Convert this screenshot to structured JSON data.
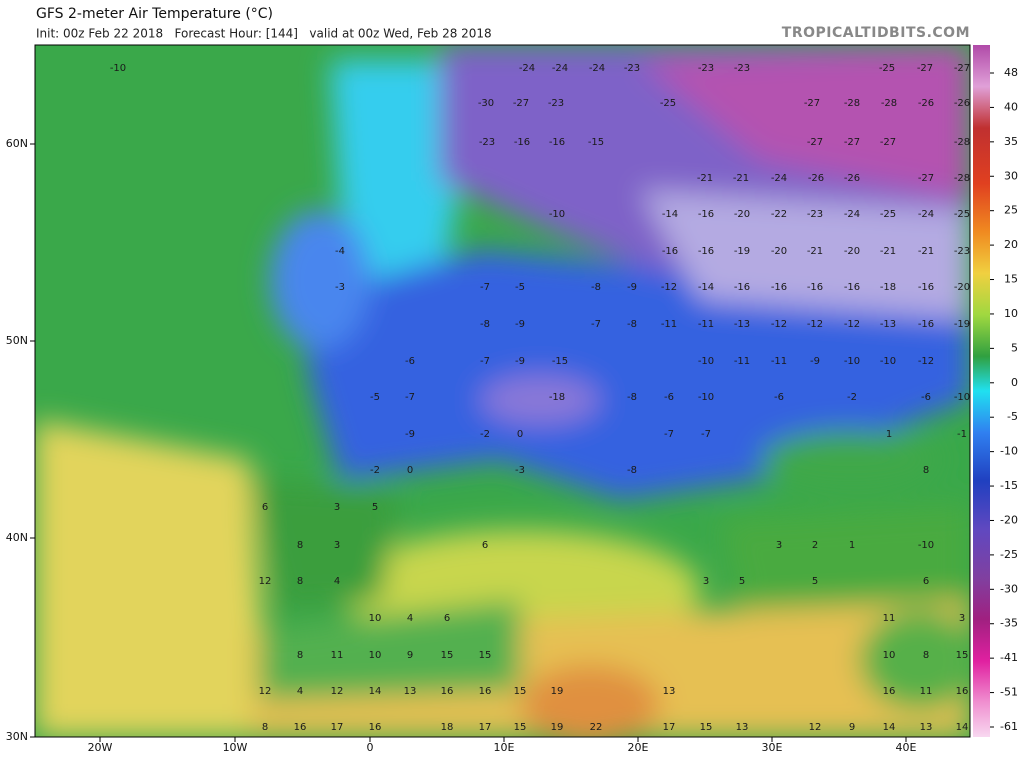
{
  "header": {
    "title": "GFS 2-meter Air Temperature (°C)",
    "subtitle": "Init: 00z Feb 22 2018   Forecast Hour: [144]   valid at 00z Wed, Feb 28 2018",
    "credit": "TROPICALTIDBITS.COM"
  },
  "map": {
    "lon_labels": [
      "20W",
      "10W",
      "0",
      "10E",
      "20E",
      "30E",
      "40E"
    ],
    "lat_labels": [
      "60N",
      "50N",
      "40N",
      "30N"
    ],
    "values": [
      -10,
      -24,
      -24,
      -24,
      -23,
      -23,
      -23,
      -25,
      -27,
      -27,
      -30,
      -27,
      -23,
      -25,
      -27,
      -28,
      -28,
      -26,
      -26,
      -23,
      -16,
      -16,
      -15,
      -27,
      -27,
      -27,
      -28,
      -21,
      -21,
      -24,
      -26,
      -26,
      -27,
      -28,
      -10,
      -14,
      -16,
      -20,
      -22,
      -23,
      -24,
      -25,
      -24,
      -25,
      -4,
      -16,
      -16,
      -19,
      -20,
      -21,
      -20,
      -21,
      -21,
      -23,
      -3,
      -7,
      -5,
      -8,
      -9,
      -12,
      -14,
      -16,
      -16,
      -16,
      -16,
      -18,
      -16,
      -20,
      -8,
      -9,
      -7,
      -8,
      -11,
      -11,
      -13,
      -12,
      -12,
      -12,
      -13,
      -16,
      -19,
      -6,
      -7,
      -9,
      -15,
      -10,
      -11,
      -11,
      -9,
      -10,
      -10,
      -12,
      -5,
      -7,
      -18,
      -8,
      -6,
      -10,
      -6,
      -2,
      -6,
      -10,
      -9,
      -2,
      0,
      -7,
      -7,
      1,
      -1,
      -2,
      0,
      -3,
      -8,
      8,
      6,
      3,
      5,
      8,
      3,
      6,
      3,
      2,
      1,
      -10,
      12,
      8,
      4,
      3,
      5,
      5,
      6,
      10,
      4,
      6,
      11,
      3,
      8,
      11,
      10,
      9,
      15,
      15,
      10,
      8,
      15,
      12,
      4,
      12,
      14,
      13,
      16,
      16,
      15,
      19,
      13,
      16,
      11,
      16,
      8,
      16,
      17,
      16,
      18,
      17,
      15,
      19,
      22,
      17,
      15,
      13,
      12,
      9,
      14,
      13,
      14
    ]
  },
  "colorbar": {
    "ticks": [
      48,
      40,
      35,
      30,
      25,
      20,
      15,
      10,
      5,
      0,
      -5,
      -10,
      -15,
      -20,
      -25,
      -30,
      -35,
      -41,
      -51,
      -61
    ]
  }
}
